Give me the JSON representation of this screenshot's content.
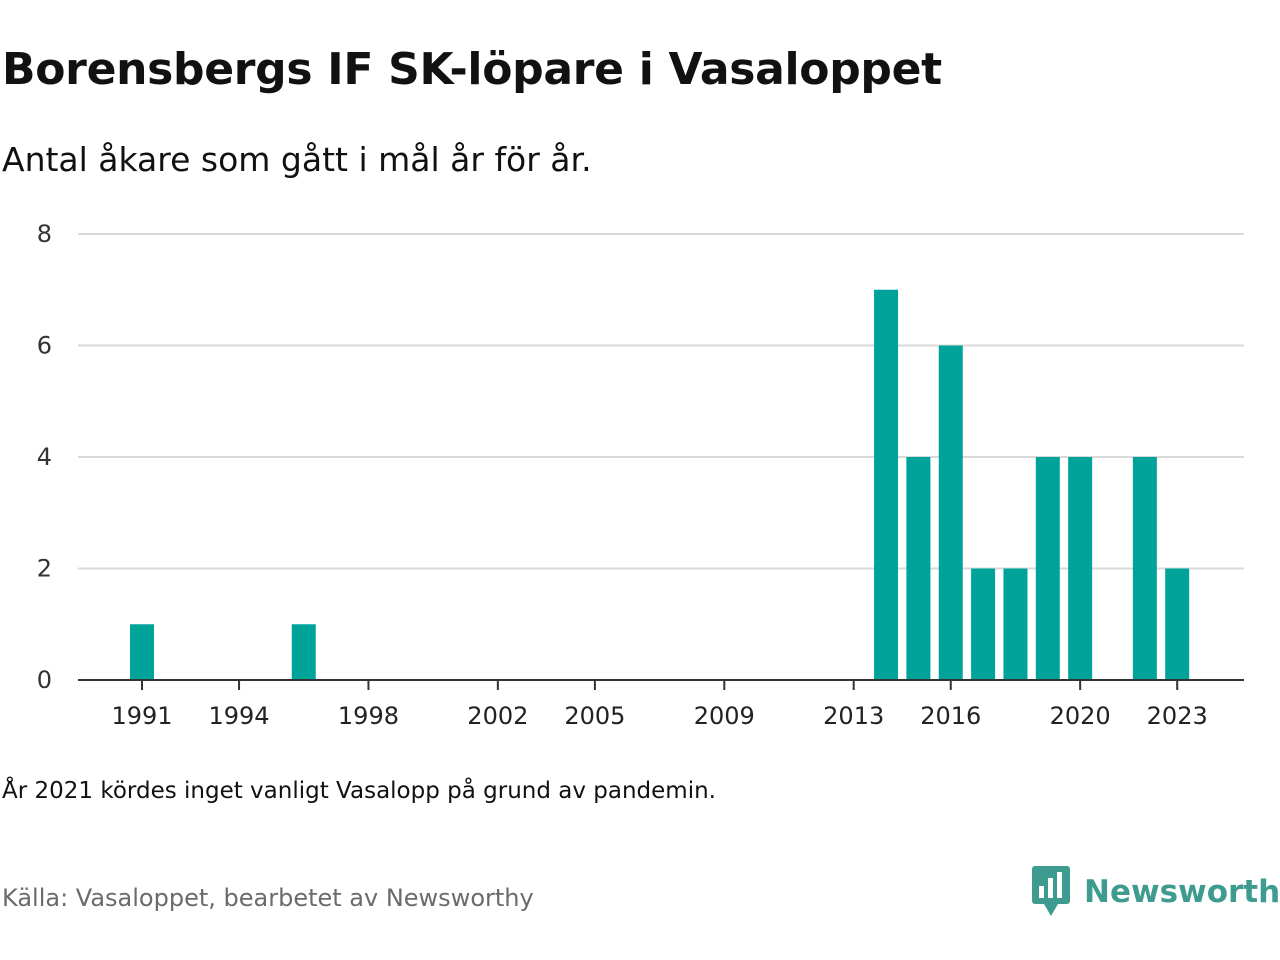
{
  "title": "Borensbergs IF SK-löpare i Vasaloppet",
  "subtitle": "Antal åkare som gått i mål år för år.",
  "note": "År 2021 kördes inget vanligt Vasalopp på grund av pandemin.",
  "source": "Källa: Vasaloppet, bearbetet av Newsworthy",
  "brand": {
    "name": "Newsworthy",
    "icon": "newsworthy-logo-icon",
    "color": "#3e9b8f"
  },
  "chart_data": {
    "type": "bar",
    "title": "",
    "xlabel": "",
    "ylabel": "",
    "ylim": [
      0,
      8
    ],
    "xlim": [
      1989,
      2025
    ],
    "grid": true,
    "bar_color": "#00a399",
    "yticks": [
      0,
      2,
      4,
      6,
      8
    ],
    "xticks": [
      1991,
      1994,
      1998,
      2002,
      2005,
      2009,
      2013,
      2016,
      2020,
      2023
    ],
    "x": [
      1991,
      1996,
      2014,
      2015,
      2016,
      2017,
      2018,
      2019,
      2020,
      2022,
      2023
    ],
    "values": [
      1,
      1,
      7,
      4,
      6,
      2,
      2,
      4,
      4,
      4,
      2
    ]
  }
}
